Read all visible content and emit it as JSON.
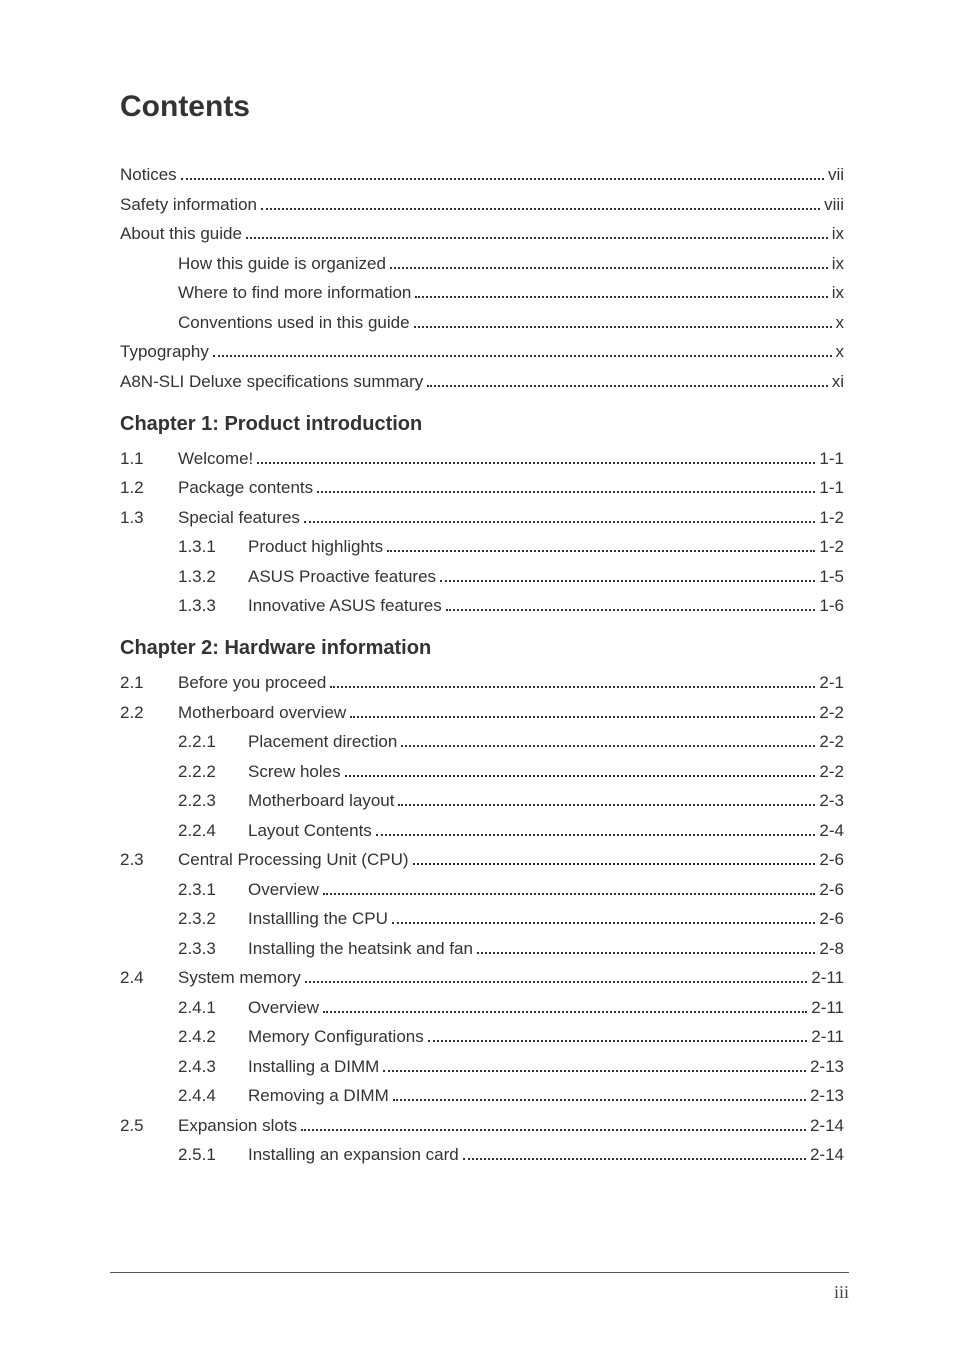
{
  "title": "Contents",
  "front": [
    {
      "label": "Notices",
      "page": "vii",
      "indent": 0
    },
    {
      "label": "Safety information",
      "page": "viii",
      "indent": 0
    },
    {
      "label": "About this guide",
      "page": "ix",
      "indent": 0
    },
    {
      "label": "How this guide is organized",
      "page": "ix",
      "indent": 1
    },
    {
      "label": "Where to find more information",
      "page": "ix",
      "indent": 1
    },
    {
      "label": "Conventions used in this guide",
      "page": "x",
      "indent": 1
    },
    {
      "label": "Typography",
      "page": "x",
      "indent": 0
    },
    {
      "label": "A8N-SLI Deluxe specifications summary",
      "page": "xi",
      "indent": 0
    }
  ],
  "chapters": [
    {
      "heading": "Chapter 1: Product introduction",
      "rows": [
        {
          "num": "1.1",
          "label": "Welcome!",
          "page": "1-1"
        },
        {
          "num": "1.2",
          "label": "Package contents",
          "page": "1-1"
        },
        {
          "num": "1.3",
          "label": "Special features",
          "page": "1-2"
        },
        {
          "sub": "1.3.1",
          "label": "Product highlights",
          "page": "1-2"
        },
        {
          "sub": "1.3.2",
          "label": "ASUS Proactive features",
          "page": "1-5"
        },
        {
          "sub": "1.3.3",
          "label": "Innovative ASUS features",
          "page": "1-6"
        }
      ]
    },
    {
      "heading": "Chapter 2: Hardware information",
      "rows": [
        {
          "num": "2.1",
          "label": "Before you proceed",
          "page": "2-1"
        },
        {
          "num": "2.2",
          "label": "Motherboard overview",
          "page": "2-2"
        },
        {
          "sub": "2.2.1",
          "label": "Placement direction",
          "page": "2-2"
        },
        {
          "sub": "2.2.2",
          "label": "Screw holes",
          "page": "2-2"
        },
        {
          "sub": "2.2.3",
          "label": "Motherboard layout",
          "page": "2-3"
        },
        {
          "sub": "2.2.4",
          "label": "Layout Contents",
          "page": "2-4"
        },
        {
          "num": "2.3",
          "label": "Central Processing Unit (CPU)",
          "page": "2-6"
        },
        {
          "sub": "2.3.1",
          "label": "Overview",
          "page": "2-6"
        },
        {
          "sub": "2.3.2",
          "label": "Installling the CPU",
          "page": "2-6"
        },
        {
          "sub": "2.3.3",
          "label": "Installing the heatsink and fan",
          "page": "2-8"
        },
        {
          "num": "2.4",
          "label": "System memory",
          "page": "2-11"
        },
        {
          "sub": "2.4.1",
          "label": "Overview",
          "page": "2-11"
        },
        {
          "sub": "2.4.2",
          "label": "Memory Configurations",
          "page": "2-11"
        },
        {
          "sub": "2.4.3",
          "label": "Installing a DIMM",
          "page": "2-13"
        },
        {
          "sub": "2.4.4",
          "label": "Removing a DIMM",
          "page": "2-13"
        },
        {
          "num": "2.5",
          "label": "Expansion slots",
          "page": "2-14"
        },
        {
          "sub": "2.5.1",
          "label": "Installing an expansion card",
          "page": "2-14"
        }
      ]
    }
  ],
  "footer": "iii",
  "style": {
    "title_fontsize": 30,
    "body_fontsize": 17,
    "chapter_fontsize": 20,
    "text_color": "#333333",
    "background_color": "#ffffff",
    "dot_color": "#333333",
    "footer_font": "serif"
  }
}
